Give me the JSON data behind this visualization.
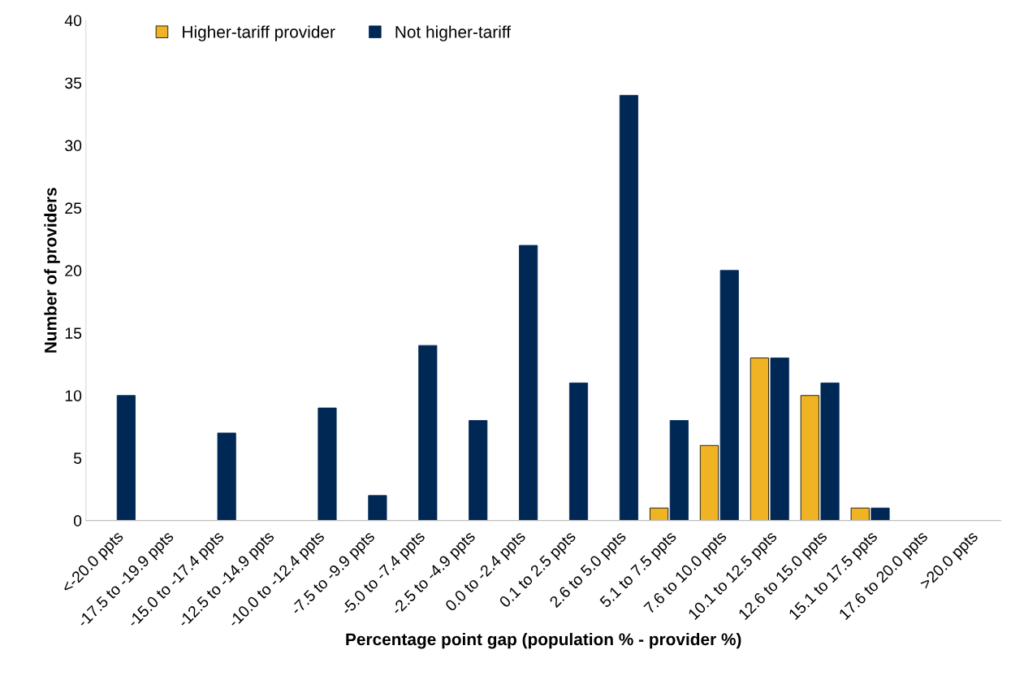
{
  "chart_data": {
    "type": "bar",
    "xlabel": "Percentage point gap (population % - provider %)",
    "ylabel": "Number of providers",
    "categories": [
      "<-20.0 ppts",
      "-17.5 to -19.9 ppts",
      "-15.0 to -17.4 ppts",
      "-12.5 to -14.9 ppts",
      "-10.0 to -12.4 ppts",
      "-7.5 to -9.9 ppts",
      "-5.0 to -7.4 ppts",
      "-2.5 to -4.9 ppts",
      "0.0 to -2.4 ppts",
      "0.1 to 2.5 ppts",
      "2.6 to 5.0 ppts",
      "5.1 to 7.5 ppts",
      "7.6 to 10.0 ppts",
      "10.1 to 12.5 ppts",
      "12.6 to 15.0 ppts",
      "15.1 to 17.5 ppts",
      "17.6 to 20.0 ppts",
      ">20.0 ppts"
    ],
    "series": [
      {
        "name": "Higher-tariff provider",
        "color": "#f0b323",
        "values": [
          0,
          0,
          0,
          0,
          0,
          0,
          0,
          0,
          0,
          0,
          0,
          1,
          6,
          13,
          10,
          1,
          0,
          0
        ]
      },
      {
        "name": "Not higher-tariff",
        "color": "#002855",
        "values": [
          10,
          0,
          7,
          0,
          9,
          2,
          14,
          8,
          22,
          11,
          34,
          8,
          20,
          13,
          11,
          1,
          0,
          0
        ]
      }
    ],
    "ylim": [
      0,
      40
    ],
    "yticks": [
      0,
      5,
      10,
      15,
      20,
      25,
      30,
      35,
      40
    ],
    "grid": false,
    "legend": "top left"
  }
}
